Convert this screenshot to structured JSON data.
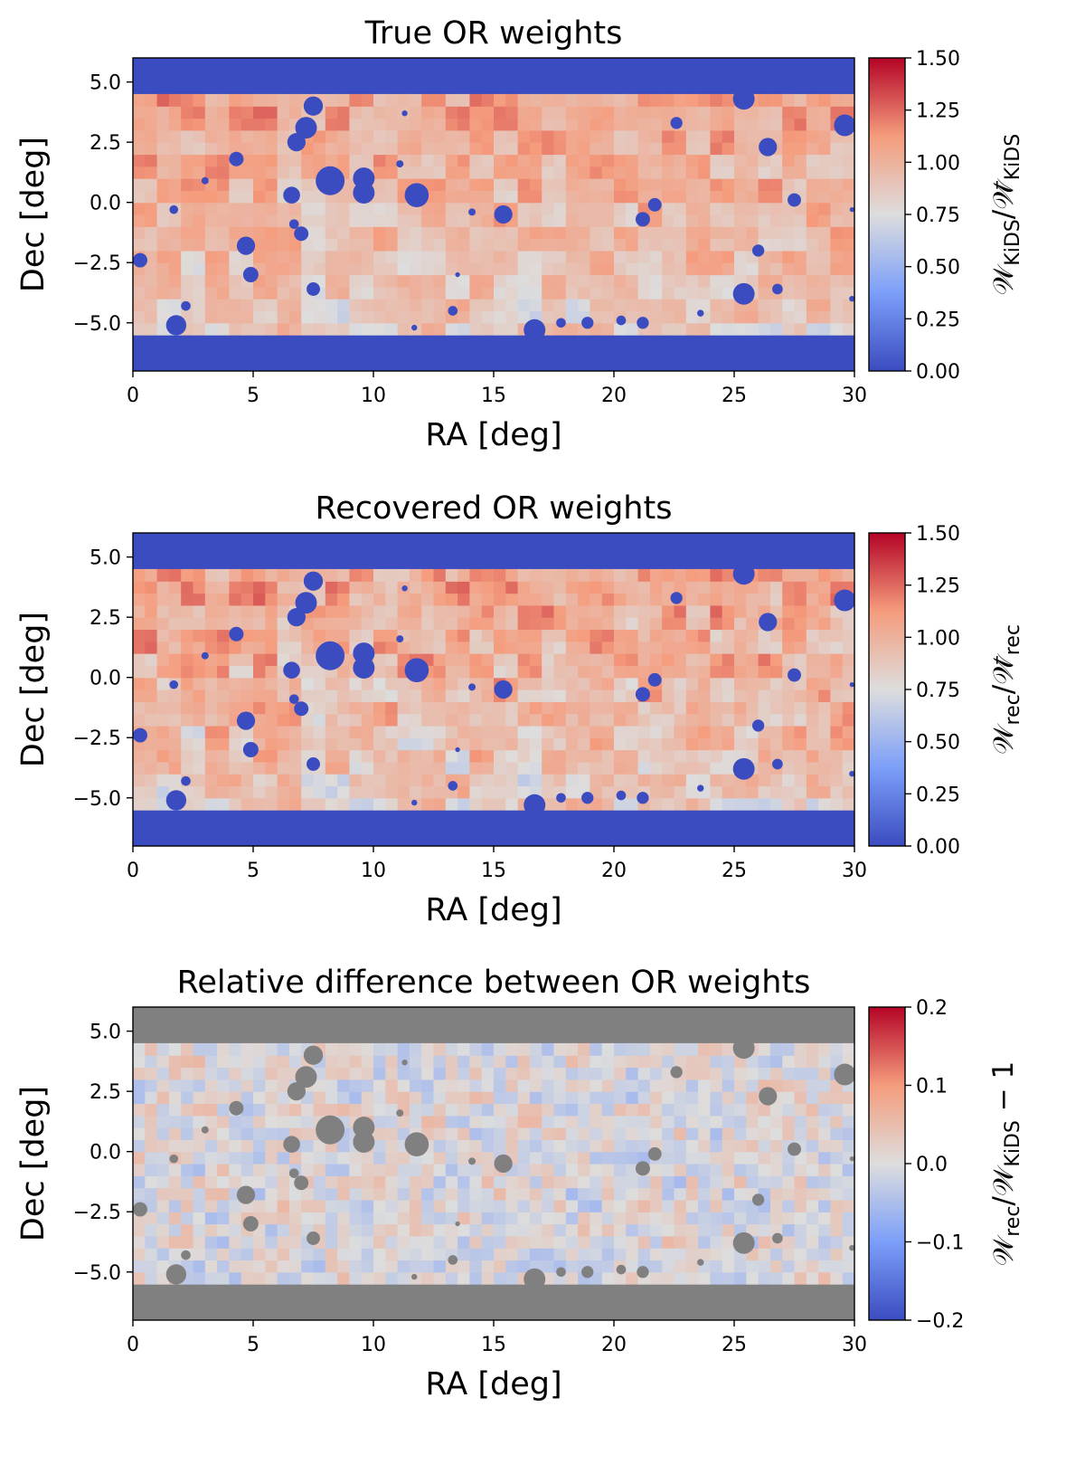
{
  "chart_data": [
    {
      "type": "heatmap",
      "title": "True OR weights",
      "xlabel": "RA [deg]",
      "ylabel": "Dec [deg]",
      "xlim": [
        0,
        30
      ],
      "ylim": [
        -7,
        6
      ],
      "xticks": [
        0,
        5,
        10,
        15,
        20,
        25,
        30
      ],
      "xtick_labels": [
        "0",
        "5",
        "10",
        "15",
        "20",
        "25",
        "30"
      ],
      "yticks": [
        5,
        2.5,
        0,
        -2.5,
        -5
      ],
      "ytick_labels": [
        "5.0",
        "2.5",
        "0.0",
        "−2.5",
        "−5.0"
      ],
      "colormap": "coolwarm",
      "colorbar": {
        "label_main": "𝒲",
        "label_sub": "KiDS",
        "label_div": "/",
        "label_bar_main": "𝒲̄",
        "label_bar_sub": "KiDS",
        "label_suffix": "",
        "range": [
          0.0,
          1.5
        ],
        "ticks": [
          0.0,
          0.25,
          0.5,
          0.75,
          1.0,
          1.25,
          1.5
        ],
        "tick_labels": [
          "0.00",
          "0.25",
          "0.50",
          "0.75",
          "1.00",
          "1.25",
          "1.50"
        ]
      },
      "survey_region": {
        "dec_min": -5.5,
        "dec_max": 4.5,
        "ra_min": 0,
        "ra_max": 30
      },
      "outside_value": 0.0,
      "mask_value": 0.0,
      "field_value_range": [
        0.6,
        1.35
      ],
      "tile_size_deg": 1.0
    },
    {
      "type": "heatmap",
      "title": "Recovered OR weights",
      "xlabel": "RA [deg]",
      "ylabel": "Dec [deg]",
      "xlim": [
        0,
        30
      ],
      "ylim": [
        -7,
        6
      ],
      "xticks": [
        0,
        5,
        10,
        15,
        20,
        25,
        30
      ],
      "xtick_labels": [
        "0",
        "5",
        "10",
        "15",
        "20",
        "25",
        "30"
      ],
      "yticks": [
        5,
        2.5,
        0,
        -2.5,
        -5
      ],
      "ytick_labels": [
        "5.0",
        "2.5",
        "0.0",
        "−2.5",
        "−5.0"
      ],
      "colormap": "coolwarm",
      "colorbar": {
        "label_main": "𝒲",
        "label_sub": "rec",
        "label_div": "/",
        "label_bar_main": "𝒲̄",
        "label_bar_sub": "rec",
        "label_suffix": "",
        "range": [
          0.0,
          1.5
        ],
        "ticks": [
          0.0,
          0.25,
          0.5,
          0.75,
          1.0,
          1.25,
          1.5
        ],
        "tick_labels": [
          "0.00",
          "0.25",
          "0.50",
          "0.75",
          "1.00",
          "1.25",
          "1.50"
        ]
      },
      "survey_region": {
        "dec_min": -5.5,
        "dec_max": 4.5,
        "ra_min": 0,
        "ra_max": 30
      },
      "outside_value": 0.0,
      "mask_value": 0.0,
      "field_value_range": [
        0.6,
        1.35
      ],
      "tile_size_deg": 1.0
    },
    {
      "type": "heatmap",
      "title": "Relative difference between OR weights",
      "xlabel": "RA [deg]",
      "ylabel": "Dec [deg]",
      "xlim": [
        0,
        30
      ],
      "ylim": [
        -7,
        6
      ],
      "xticks": [
        0,
        5,
        10,
        15,
        20,
        25,
        30
      ],
      "xtick_labels": [
        "0",
        "5",
        "10",
        "15",
        "20",
        "25",
        "30"
      ],
      "yticks": [
        5,
        2.5,
        0,
        -2.5,
        -5
      ],
      "ytick_labels": [
        "5.0",
        "2.5",
        "0.0",
        "−2.5",
        "−5.0"
      ],
      "colormap": "coolwarm",
      "colorbar": {
        "label_main": "𝒲",
        "label_sub": "rec",
        "label_div": "/",
        "label_bar_main": "𝒲",
        "label_bar_sub": "KiDS",
        "label_suffix": " − 1",
        "range": [
          -0.2,
          0.2
        ],
        "ticks": [
          -0.2,
          -0.1,
          0.0,
          0.1,
          0.2
        ],
        "tick_labels": [
          "−0.2",
          "−0.1",
          "0.0",
          "0.1",
          "0.2"
        ]
      },
      "survey_region": {
        "dec_min": -5.5,
        "dec_max": 4.5,
        "ra_min": 0,
        "ra_max": 30
      },
      "outside_color": "#808080",
      "mask_color": "#808080",
      "field_value_range": [
        -0.05,
        0.05
      ]
    }
  ],
  "masked_holes": [
    {
      "ra": 7.5,
      "dec": 4.0,
      "r": 0.4
    },
    {
      "ra": 7.2,
      "dec": 3.1,
      "r": 0.45
    },
    {
      "ra": 6.8,
      "dec": 2.5,
      "r": 0.38
    },
    {
      "ra": 4.3,
      "dec": 1.8,
      "r": 0.3
    },
    {
      "ra": 8.2,
      "dec": 0.9,
      "r": 0.6
    },
    {
      "ra": 9.6,
      "dec": 1.0,
      "r": 0.45
    },
    {
      "ra": 9.6,
      "dec": 0.4,
      "r": 0.45
    },
    {
      "ra": 11.8,
      "dec": 0.3,
      "r": 0.5
    },
    {
      "ra": 6.6,
      "dec": 0.3,
      "r": 0.35
    },
    {
      "ra": 4.7,
      "dec": -1.8,
      "r": 0.38
    },
    {
      "ra": 7.0,
      "dec": -1.3,
      "r": 0.3
    },
    {
      "ra": 6.7,
      "dec": -0.9,
      "r": 0.2
    },
    {
      "ra": 4.9,
      "dec": -3.0,
      "r": 0.32
    },
    {
      "ra": 0.3,
      "dec": -2.4,
      "r": 0.3
    },
    {
      "ra": 7.5,
      "dec": -3.6,
      "r": 0.28
    },
    {
      "ra": 1.8,
      "dec": -5.1,
      "r": 0.42
    },
    {
      "ra": 2.2,
      "dec": -4.3,
      "r": 0.2
    },
    {
      "ra": 15.4,
      "dec": -0.5,
      "r": 0.38
    },
    {
      "ra": 16.7,
      "dec": -5.3,
      "r": 0.45
    },
    {
      "ra": 17.8,
      "dec": -5.0,
      "r": 0.2
    },
    {
      "ra": 18.9,
      "dec": -5.0,
      "r": 0.25
    },
    {
      "ra": 20.3,
      "dec": -4.9,
      "r": 0.2
    },
    {
      "ra": 21.2,
      "dec": -5.0,
      "r": 0.25
    },
    {
      "ra": 21.2,
      "dec": -0.7,
      "r": 0.3
    },
    {
      "ra": 21.7,
      "dec": -0.1,
      "r": 0.28
    },
    {
      "ra": 22.6,
      "dec": 3.3,
      "r": 0.25
    },
    {
      "ra": 25.4,
      "dec": 4.3,
      "r": 0.45
    },
    {
      "ra": 26.4,
      "dec": 2.3,
      "r": 0.38
    },
    {
      "ra": 29.6,
      "dec": 3.2,
      "r": 0.45
    },
    {
      "ra": 27.5,
      "dec": 0.1,
      "r": 0.28
    },
    {
      "ra": 26.0,
      "dec": -2.0,
      "r": 0.25
    },
    {
      "ra": 25.4,
      "dec": -3.8,
      "r": 0.45
    },
    {
      "ra": 26.8,
      "dec": -3.6,
      "r": 0.22
    },
    {
      "ra": 13.3,
      "dec": -4.5,
      "r": 0.2
    },
    {
      "ra": 11.3,
      "dec": 3.7,
      "r": 0.12
    },
    {
      "ra": 11.1,
      "dec": 1.6,
      "r": 0.15
    },
    {
      "ra": 3.0,
      "dec": 0.9,
      "r": 0.15
    },
    {
      "ra": 1.7,
      "dec": -0.3,
      "r": 0.18
    },
    {
      "ra": 14.1,
      "dec": -0.4,
      "r": 0.15
    },
    {
      "ra": 23.6,
      "dec": -4.6,
      "r": 0.14
    },
    {
      "ra": 11.7,
      "dec": -5.2,
      "r": 0.12
    },
    {
      "ra": 13.5,
      "dec": -3.0,
      "r": 0.1
    },
    {
      "ra": 29.9,
      "dec": -4.0,
      "r": 0.12
    },
    {
      "ra": 29.9,
      "dec": -0.3,
      "r": 0.1
    }
  ]
}
